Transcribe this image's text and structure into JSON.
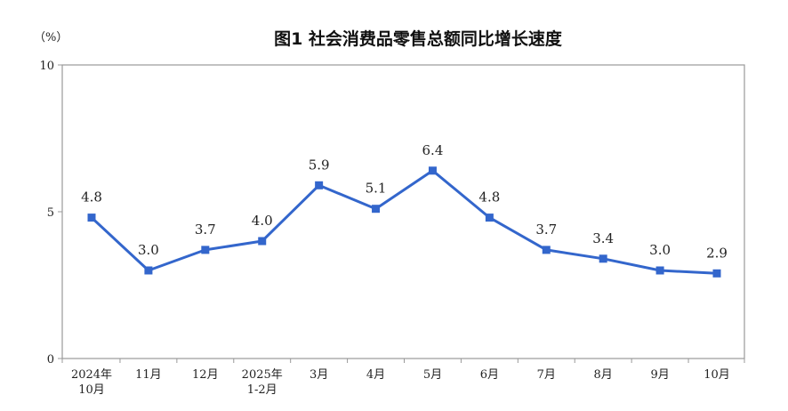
{
  "chart_data": {
    "type": "line",
    "title": "图1 社会消费品零售总额同比增长速度",
    "unit": "（%）",
    "categories": [
      [
        "2024年",
        "10月"
      ],
      [
        "11月"
      ],
      [
        "12月"
      ],
      [
        "2025年",
        "1-2月"
      ],
      [
        "3月"
      ],
      [
        "4月"
      ],
      [
        "5月"
      ],
      [
        "6月"
      ],
      [
        "7月"
      ],
      [
        "8月"
      ],
      [
        "9月"
      ],
      [
        "10月"
      ]
    ],
    "values": [
      4.8,
      3.0,
      3.7,
      4.0,
      5.9,
      5.1,
      6.4,
      4.8,
      3.7,
      3.4,
      3.0,
      2.9
    ],
    "data_labels": [
      "4.8",
      "3.0",
      "3.7",
      "4.0",
      "5.9",
      "5.1",
      "6.4",
      "4.8",
      "3.7",
      "3.4",
      "3.0",
      "2.9"
    ],
    "yticks": [
      0,
      5,
      10
    ],
    "ytick_labels": [
      "0",
      "5",
      "10"
    ],
    "ylim": [
      0,
      10
    ],
    "grid": false,
    "line_color": "#3366CC",
    "marker": "square"
  }
}
